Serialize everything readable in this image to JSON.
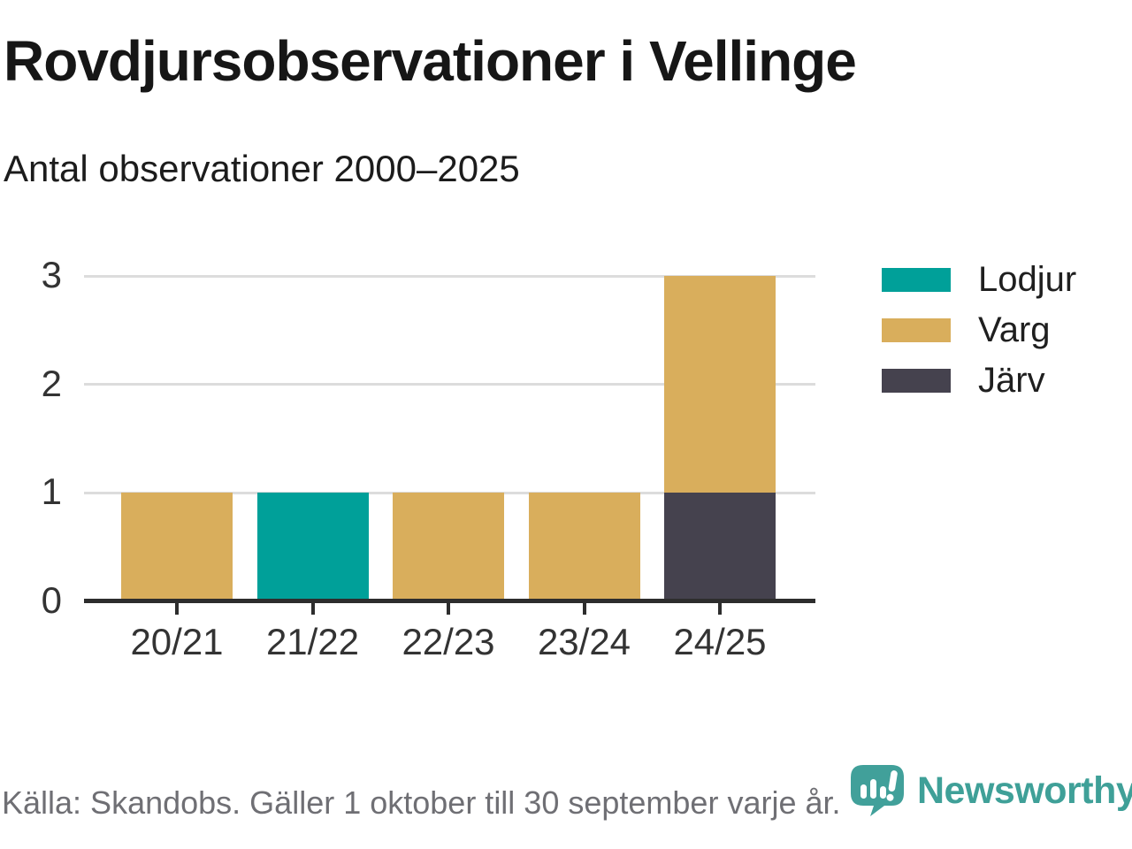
{
  "title": "Rovdjursobservationer i Vellinge",
  "subtitle": "Antal observationer 2000–2025",
  "footer": {
    "source": "Källa: Skandobs. Gäller 1 oktober till 30 september varje år."
  },
  "branding": {
    "name": "Newsworthy",
    "logo_icon": "newsworthy-speech-bubble-bar-chart-icon",
    "color": "#3fa098",
    "icon_color": "#41a09a"
  },
  "legend": {
    "position": "right",
    "items": [
      {
        "label": "Lodjur",
        "color": "#00a099"
      },
      {
        "label": "Varg",
        "color": "#d9ae5c"
      },
      {
        "label": "Järv",
        "color": "#45424e"
      }
    ]
  },
  "chart_data": {
    "type": "bar",
    "stacked": true,
    "title": "Rovdjursobservationer i Vellinge",
    "subtitle": "Antal observationer 2000–2025",
    "categories": [
      "20/21",
      "21/22",
      "22/23",
      "23/24",
      "24/25"
    ],
    "series": [
      {
        "name": "Lodjur",
        "color": "#00a099",
        "values": [
          0,
          1,
          0,
          0,
          0
        ]
      },
      {
        "name": "Varg",
        "color": "#d9ae5c",
        "values": [
          1,
          0,
          1,
          1,
          2
        ]
      },
      {
        "name": "Järv",
        "color": "#45424e",
        "values": [
          0,
          0,
          0,
          0,
          1
        ]
      }
    ],
    "stack_order_bottom_to_top": [
      "Järv",
      "Varg",
      "Lodjur"
    ],
    "totals_by_category": [
      1,
      1,
      1,
      1,
      3
    ],
    "ylim": [
      0,
      3
    ],
    "yticks": [
      0,
      1,
      2,
      3
    ],
    "xlabel": "",
    "ylabel": "",
    "grid": "horizontal",
    "grid_color": "#dcdcdc",
    "axis_color": "#2d2d2d",
    "legend_position": "right"
  }
}
